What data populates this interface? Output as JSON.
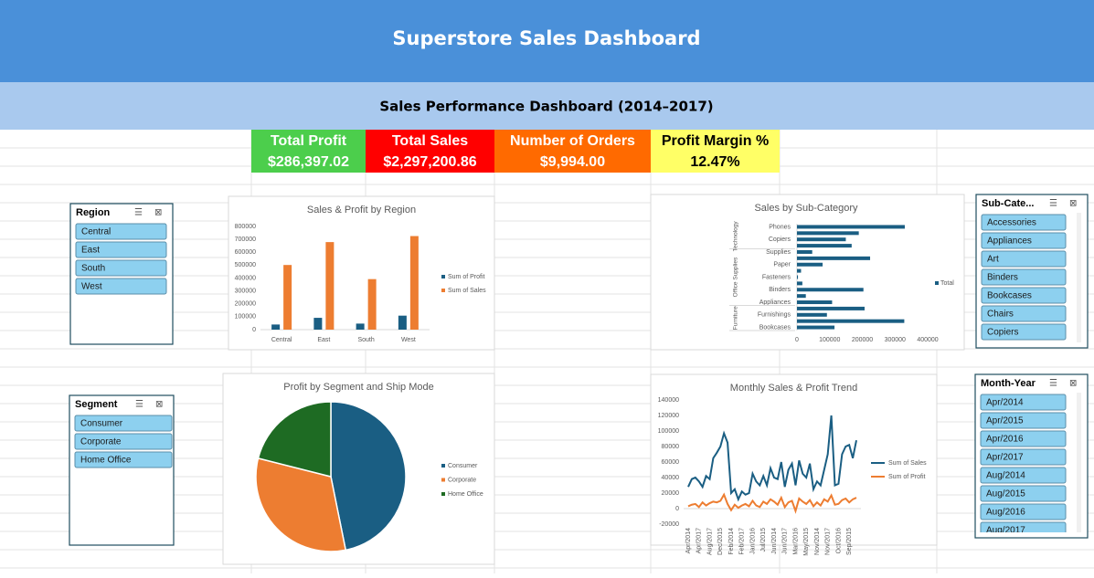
{
  "header": {
    "title": "Superstore Sales Dashboard",
    "subtitle": "Sales Performance Dashboard (2014–2017)"
  },
  "kpis": [
    {
      "label": "Total Profit",
      "value": "$286,397.02",
      "color": "#4cce4c"
    },
    {
      "label": "Total Sales",
      "value": "$2,297,200.86",
      "color": "#ff0000"
    },
    {
      "label": "Number of Orders",
      "value": "$9,994.00",
      "color": "#ff6a00"
    },
    {
      "label": "Profit Margin %",
      "value": "12.47%",
      "color": "#ffff66"
    }
  ],
  "slicers": [
    {
      "title": "Region",
      "items": [
        "Central",
        "East",
        "South",
        "West"
      ]
    },
    {
      "title": "Segment",
      "items": [
        "Consumer",
        "Corporate",
        "Home Office"
      ]
    },
    {
      "title": "Sub-Cate...",
      "items": [
        "Accessories",
        "Appliances",
        "Art",
        "Binders",
        "Bookcases",
        "Chairs",
        "Copiers"
      ]
    },
    {
      "title": "Month-Year",
      "items": [
        "Apr/2014",
        "Apr/2015",
        "Apr/2016",
        "Apr/2017",
        "Aug/2014",
        "Aug/2015",
        "Aug/2016",
        "Aug/2017"
      ]
    }
  ],
  "chart_data": [
    {
      "type": "bar",
      "title": "Sales & Profit by Region",
      "categories": [
        "Central",
        "East",
        "South",
        "West"
      ],
      "series": [
        {
          "name": "Sum of Profit",
          "color": "#1a5e83",
          "values": [
            39706,
            91523,
            46749,
            108418
          ]
        },
        {
          "name": "Sum of Sales",
          "color": "#ed7d31",
          "values": [
            501240,
            678781,
            391722,
            725458
          ]
        }
      ],
      "ylim": [
        0,
        800000
      ],
      "yticks": [
        0,
        100000,
        200000,
        300000,
        400000,
        500000,
        600000,
        700000,
        800000
      ]
    },
    {
      "type": "hbar",
      "title": "Sales by Sub-Category",
      "legend": "Total",
      "color": "#1a5e83",
      "groups": [
        {
          "name": "Technology",
          "categories": [
            "Phones",
            null,
            "Copiers",
            null
          ],
          "values": [
            330007,
            189239,
            149528,
            167380
          ]
        },
        {
          "name": "Office Supplies",
          "categories": [
            "Supplies",
            null,
            "Paper",
            null,
            "Fasteners",
            null,
            "Binders",
            null,
            "Appliances"
          ],
          "values": [
            46674,
            223844,
            78479,
            12486,
            3024,
            16476,
            203413,
            27119,
            107532
          ]
        },
        {
          "name": "Furniture",
          "categories": [
            null,
            "Furnishings",
            null,
            "Bookcases"
          ],
          "values": [
            206966,
            91705,
            328449,
            114880
          ]
        }
      ],
      "xlim": [
        0,
        400000
      ],
      "xticks": [
        0,
        100000,
        200000,
        300000,
        400000
      ]
    },
    {
      "type": "pie",
      "title": "Profit by Segment and Ship Mode",
      "categories": [
        "Consumer",
        "Corporate",
        "Home Office"
      ],
      "values": [
        134119,
        91979,
        60298
      ],
      "colors": [
        "#1a5e83",
        "#ed7d31",
        "#1e6b23"
      ]
    },
    {
      "type": "line",
      "title": "Monthly Sales & Profit Trend",
      "categories": [
        "Apr/2014",
        null,
        null,
        "Apr/2017",
        null,
        null,
        "Aug/2017",
        null,
        null,
        "Dec/2015",
        null,
        null,
        "Feb/2014",
        null,
        null,
        "Feb/2017",
        null,
        null,
        "Jan/2016",
        null,
        null,
        "Jul/2015",
        null,
        null,
        "Jun/2014",
        null,
        null,
        "Jun/2017",
        null,
        null,
        "Mar/2016",
        null,
        null,
        "May/2015",
        null,
        null,
        "Nov/2014",
        null,
        null,
        "Nov/2017",
        null,
        null,
        "Oct/2016",
        null,
        null,
        "Sep/2015",
        null,
        null
      ],
      "series": [
        {
          "name": "Sum of Sales",
          "color": "#1a5e83",
          "values": [
            28000,
            38000,
            40000,
            35000,
            28000,
            42000,
            38000,
            65000,
            72000,
            80000,
            97000,
            85000,
            20000,
            25000,
            12000,
            22000,
            18000,
            20000,
            45000,
            35000,
            30000,
            42000,
            30000,
            52000,
            40000,
            38000,
            60000,
            28000,
            50000,
            58000,
            30000,
            62000,
            45000,
            40000,
            58000,
            25000,
            35000,
            30000,
            50000,
            70000,
            120000,
            30000,
            32000,
            70000,
            80000,
            82000,
            65000,
            88000
          ]
        },
        {
          "name": "Sum of Profit",
          "color": "#ed7d31",
          "values": [
            3000,
            5000,
            6000,
            2000,
            8000,
            4000,
            7000,
            9000,
            8000,
            10000,
            18000,
            6000,
            -2000,
            5000,
            1000,
            4000,
            6000,
            3000,
            10000,
            4000,
            2000,
            9000,
            6000,
            12000,
            9000,
            5000,
            14000,
            2000,
            8000,
            10000,
            -3000,
            13000,
            9000,
            6000,
            11000,
            3000,
            8000,
            4000,
            12000,
            9000,
            17000,
            5000,
            6000,
            11000,
            13000,
            8000,
            12000,
            14000
          ]
        }
      ],
      "ylim": [
        -20000,
        140000
      ],
      "yticks": [
        -20000,
        0,
        20000,
        40000,
        60000,
        80000,
        100000,
        120000,
        140000
      ]
    }
  ]
}
